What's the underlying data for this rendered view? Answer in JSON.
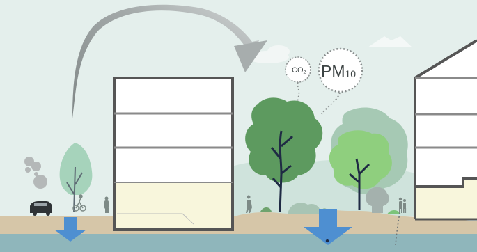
{
  "labels": {
    "co2": "CO",
    "co2_sub": "2",
    "pm": "PM",
    "pm_sub": "10"
  },
  "colors": {
    "sky": "#e4efec",
    "ground": "#d6c6a8",
    "water": "#8fb6bb",
    "building_outline": "#555555",
    "building_fill": "#ffffff",
    "ground_floor_fill": "#f8f6dc",
    "arrow_blue": "#4e8fd1",
    "tree_dark_green": "#5d9a5f",
    "tree_light_green": "#8fcf7e",
    "tree_pale_green": "#a6d3bb",
    "trunk": "#1f2a44",
    "pollution_grey": "#b4b8b8"
  }
}
